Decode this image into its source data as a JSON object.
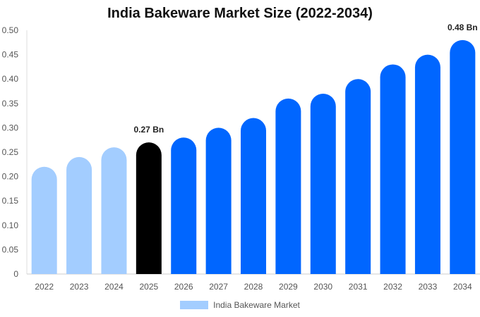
{
  "chart_data": {
    "type": "bar",
    "title": "India Bakeware Market Size (2022-2034)",
    "categories": [
      "2022",
      "2023",
      "2024",
      "2025",
      "2026",
      "2027",
      "2028",
      "2029",
      "2030",
      "2031",
      "2032",
      "2033",
      "2034"
    ],
    "series": [
      {
        "name": "India Bakeware Market",
        "values": [
          0.22,
          0.24,
          0.26,
          0.27,
          0.28,
          0.3,
          0.32,
          0.36,
          0.37,
          0.4,
          0.43,
          0.45,
          0.48
        ]
      }
    ],
    "ylim": [
      0,
      0.5
    ],
    "yticks": [
      "0",
      "0.05",
      "0.10",
      "0.15",
      "0.20",
      "0.25",
      "0.30",
      "0.35",
      "0.40",
      "0.45",
      "0.50"
    ],
    "annotations": [
      {
        "category": "2025",
        "text": "0.27 Bn"
      },
      {
        "category": "2034",
        "text": "0.48 Bn"
      }
    ],
    "colors": {
      "historical": "#a3cdff",
      "current": "#000000",
      "forecast": "#0066ff"
    },
    "grid": false,
    "legend_position": "bottom-center"
  }
}
